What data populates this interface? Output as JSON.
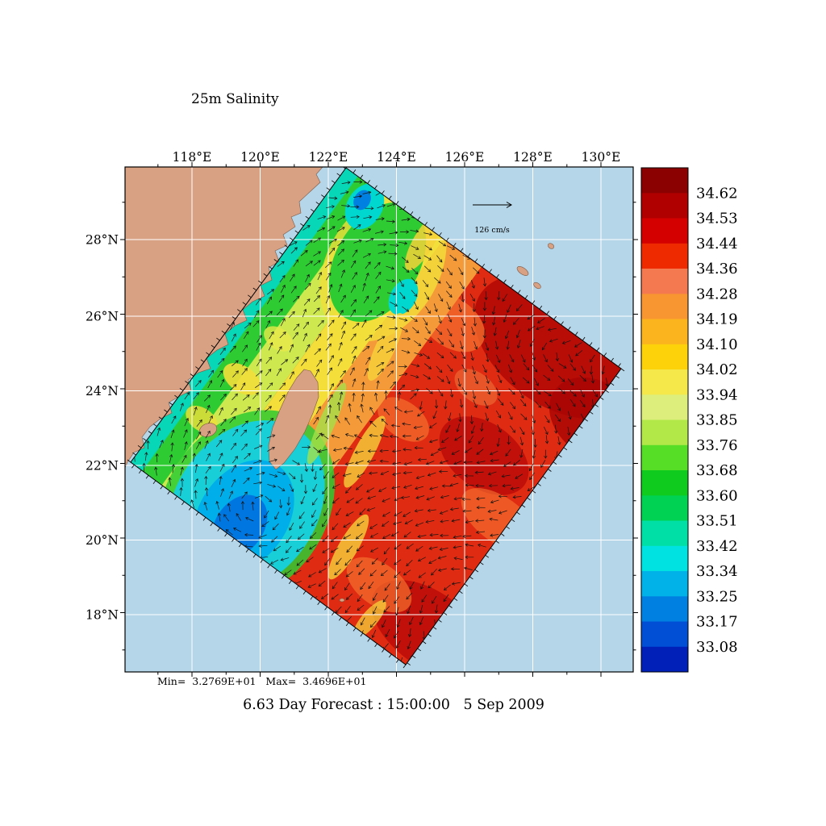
{
  "figure": {
    "title": "25m Salinity",
    "caption": "6.63 Day Forecast : 15:00:00   5 Sep 2009",
    "stats_label": "Min=  3.2769E+01   Max=  3.4696E+01",
    "vector_scale_label": "126 cm/s"
  },
  "chart_data": {
    "type": "heatmap",
    "title": "25m Salinity",
    "caption": "6.63 Day Forecast : 15:00:00   5 Sep 2009",
    "x_ticks": [
      "118°E",
      "120°E",
      "122°E",
      "124°E",
      "126°E",
      "128°E",
      "130°E"
    ],
    "y_ticks": [
      "28°N",
      "26°N",
      "24°N",
      "22°N",
      "20°N",
      "18°N"
    ],
    "grid": true,
    "data_min": "3.2769E+01",
    "data_max": "3.4696E+01",
    "vector_scale": "126 cm/s",
    "colorbar": {
      "position": "right",
      "values": [
        "34.62",
        "34.53",
        "34.44",
        "34.36",
        "34.28",
        "34.19",
        "34.10",
        "34.02",
        "33.94",
        "33.85",
        "33.76",
        "33.68",
        "33.60",
        "33.51",
        "33.42",
        "33.34",
        "33.25",
        "33.17",
        "33.08"
      ],
      "colors": [
        "#8b0000",
        "#b00000",
        "#d40000",
        "#ee2a00",
        "#f47850",
        "#f89632",
        "#fbb41e",
        "#fdd20a",
        "#f4e84b",
        "#ddee7d",
        "#b2e949",
        "#56dd26",
        "#0ecb1e",
        "#00d253",
        "#00dfa5",
        "#00e2e2",
        "#00b2e8",
        "#0080e0",
        "#004fd5",
        "#0020b8"
      ]
    }
  },
  "colors": {
    "ocean": "#b5d6e9",
    "land": "#d9a183",
    "grid": "#ffffff",
    "frame": "#000000",
    "background": "#ffffff"
  }
}
